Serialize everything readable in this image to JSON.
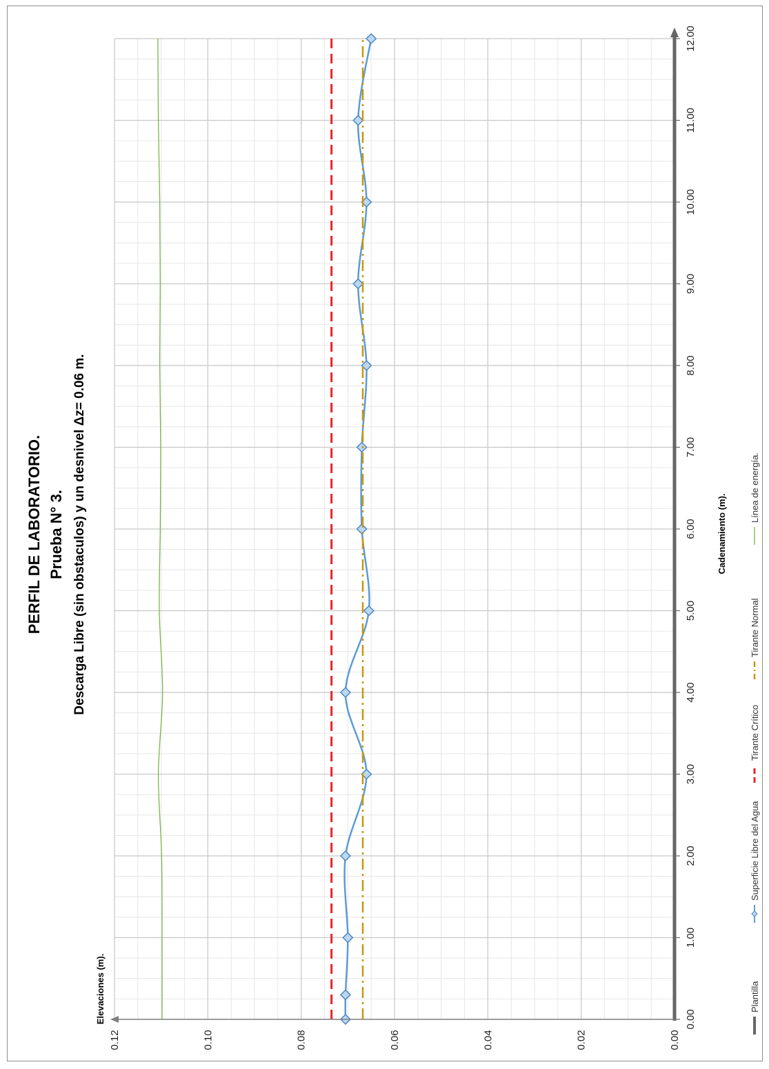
{
  "chart_data": {
    "type": "line",
    "title": "PERFIL DE LABORATORIO.",
    "subtitle_1": "Prueba N° 3.",
    "subtitle_2": "Descarga Libre (sin obstaculos) y un desnivel Δz= 0.06 m.",
    "xlabel": "Cadenamiento (m).",
    "ylabel": "Elevaciones (m).",
    "xlim": [
      0,
      12
    ],
    "ylim": [
      0,
      0.12
    ],
    "x_ticks": [
      "0.00",
      "1.00",
      "2.00",
      "3.00",
      "4.00",
      "5.00",
      "6.00",
      "7.00",
      "8.00",
      "9.00",
      "10.00",
      "11.00",
      "12.00"
    ],
    "y_ticks": [
      "0.00",
      "0.02",
      "0.04",
      "0.06",
      "0.08",
      "0.10",
      "0.12"
    ],
    "grid": true,
    "orientation": "rotated 90° counter-clockwise (x axis runs vertically, values increase upward)",
    "legend_placement": "bottom",
    "series": [
      {
        "name": "Plantilla",
        "style": "solid-thick",
        "color": "#666666",
        "x": [
          0,
          12
        ],
        "y": [
          0,
          0
        ]
      },
      {
        "name": "Superficie Libre del Agua",
        "style": "smooth-with-diamond-markers",
        "color": "#5b9bd5",
        "x": [
          0,
          0.3,
          1,
          2,
          3,
          4,
          5,
          6,
          7,
          8,
          9,
          10,
          11,
          12
        ],
        "y": [
          0.0705,
          0.0705,
          0.07,
          0.0705,
          0.066,
          0.0705,
          0.0655,
          0.067,
          0.067,
          0.066,
          0.0678,
          0.066,
          0.0678,
          0.065
        ]
      },
      {
        "name": "Tirante Crítico",
        "style": "dashed",
        "color": "#e8232a",
        "x": [
          0,
          12
        ],
        "y": [
          0.0735,
          0.0735
        ]
      },
      {
        "name": "Tirante Normal",
        "style": "dash-dot",
        "color": "#c9960f",
        "x": [
          0,
          12
        ],
        "y": [
          0.0668,
          0.0668
        ]
      },
      {
        "name": "Línea de energía.",
        "style": "solid-thin",
        "color": "#7ab648",
        "x": [
          0,
          1,
          2,
          3,
          4,
          5,
          6,
          7,
          8,
          9,
          10,
          11,
          12
        ],
        "y": [
          0.1098,
          0.1098,
          0.1099,
          0.1106,
          0.1097,
          0.1104,
          0.1102,
          0.1101,
          0.1103,
          0.1102,
          0.1103,
          0.1106,
          0.1107
        ]
      }
    ]
  }
}
